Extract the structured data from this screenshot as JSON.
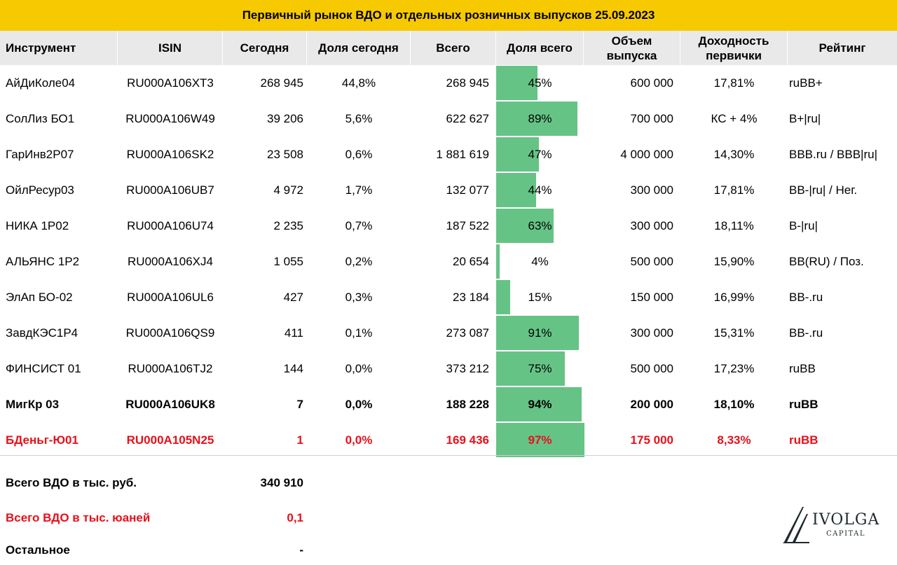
{
  "title": "Первичный рынок ВДО и отдельных розничных выпусков 25.09.2023",
  "columns": {
    "instrument": "Инструмент",
    "isin": "ISIN",
    "today": "Сегодня",
    "share_today": "Доля сегодня",
    "total": "Всего",
    "share_total": "Доля всего",
    "volume_l1": "Объем",
    "volume_l2": "выпуска",
    "yield_l1": "Доходность",
    "yield_l2": "первички",
    "rating": "Рейтинг"
  },
  "rows": [
    {
      "instrument": "АйДиКоле04",
      "isin": "RU000A106XT3",
      "today": "268 945",
      "share_today": "44,8%",
      "total": "268 945",
      "share_total": "45%",
      "share_total_value": 45,
      "volume": "600 000",
      "yield": "17,81%",
      "rating": "ruBB+"
    },
    {
      "instrument": "СолЛиз БО1",
      "isin": "RU000A106W49",
      "today": "39 206",
      "share_today": "5,6%",
      "total": "622 627",
      "share_total": "89%",
      "share_total_value": 89,
      "volume": "700 000",
      "yield": "КС + 4%",
      "rating": "B+|ru|"
    },
    {
      "instrument": "ГарИнв2Р07",
      "isin": "RU000A106SK2",
      "today": "23 508",
      "share_today": "0,6%",
      "total": "1 881 619",
      "share_total": "47%",
      "share_total_value": 47,
      "volume": "4 000 000",
      "yield": "14,30%",
      "rating": "BBB.ru  / BBB|ru|"
    },
    {
      "instrument": "ОйлРесур03",
      "isin": "RU000A106UB7",
      "today": "4 972",
      "share_today": "1,7%",
      "total": "132 077",
      "share_total": "44%",
      "share_total_value": 44,
      "volume": "300 000",
      "yield": "17,81%",
      "rating": "BB-|ru| / Нег."
    },
    {
      "instrument": "НИКА 1Р02",
      "isin": "RU000A106U74",
      "today": "2 235",
      "share_today": "0,7%",
      "total": "187 522",
      "share_total": "63%",
      "share_total_value": 63,
      "volume": "300 000",
      "yield": "18,11%",
      "rating": "B-|ru|"
    },
    {
      "instrument": "АЛЬЯНС 1Р2",
      "isin": "RU000A106XJ4",
      "today": "1 055",
      "share_today": "0,2%",
      "total": "20 654",
      "share_total": "4%",
      "share_total_value": 4,
      "volume": "500 000",
      "yield": "15,90%",
      "rating": "BB(RU) / Поз."
    },
    {
      "instrument": "ЭлАп БО-02",
      "isin": "RU000A106UL6",
      "today": "427",
      "share_today": "0,3%",
      "total": "23 184",
      "share_total": "15%",
      "share_total_value": 15,
      "volume": "150 000",
      "yield": "16,99%",
      "rating": "BB-.ru"
    },
    {
      "instrument": "ЗавдКЭС1Р4",
      "isin": "RU000A106QS9",
      "today": "411",
      "share_today": "0,1%",
      "total": "273 087",
      "share_total": "91%",
      "share_total_value": 91,
      "volume": "300 000",
      "yield": "15,31%",
      "rating": "BB-.ru"
    },
    {
      "instrument": "ФИНСИСТ 01",
      "isin": "RU000A106TJ2",
      "today": "144",
      "share_today": "0,0%",
      "total": "373 212",
      "share_total": "75%",
      "share_total_value": 75,
      "volume": "500 000",
      "yield": "17,23%",
      "rating": "ruBB"
    },
    {
      "instrument": "МигКр 03",
      "isin": "RU000A106UK8",
      "today": "7",
      "share_today": "0,0%",
      "total": "188 228",
      "share_total": "94%",
      "share_total_value": 94,
      "volume": "200 000",
      "yield": "18,10%",
      "rating": "ruBB"
    },
    {
      "instrument": "БДеньг-Ю01",
      "isin": "RU000A105N25",
      "today": "1",
      "share_today": "0,0%",
      "total": "169 436",
      "share_total": "97%",
      "share_total_value": 97,
      "volume": "175 000",
      "yield": "8,33%",
      "rating": "ruBB"
    }
  ],
  "summary": [
    {
      "label": "Всего ВДО в тыс. руб.",
      "value": "340 910"
    },
    {
      "label": "Всего ВДО в тыс. юаней",
      "value": "0,1"
    },
    {
      "label": "Остальное",
      "value": "-"
    }
  ],
  "logo": {
    "name": "IVOLGA",
    "sub": "CAPITAL"
  },
  "colors": {
    "title_bg": "#f7c900",
    "header_bg": "#e9e9e9",
    "bar": "#66c386",
    "highlight_red": "#e8101a"
  }
}
